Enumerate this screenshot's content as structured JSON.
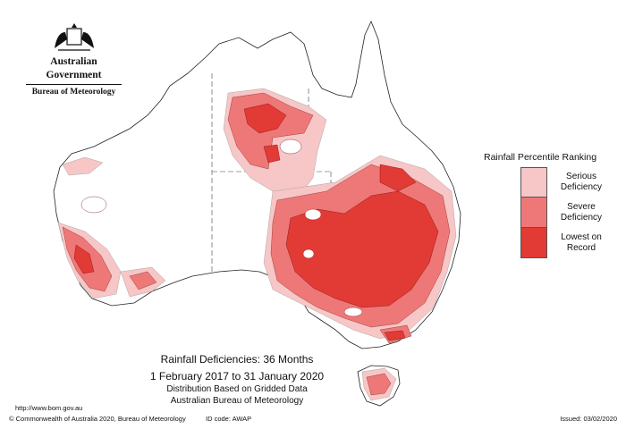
{
  "header": {
    "government": "Australian Government",
    "bureau": "Bureau of Meteorology"
  },
  "legend": {
    "title": "Rainfall Percentile Ranking",
    "items": [
      {
        "label_line1": "Serious",
        "label_line2": "Deficiency",
        "color": "#f7c6c6"
      },
      {
        "label_line1": "Severe",
        "label_line2": "Deficiency",
        "color": "#ee7878"
      },
      {
        "label_line1": "Lowest on",
        "label_line2": "Record",
        "color": "#e23a35"
      }
    ]
  },
  "caption": {
    "title": "Rainfall Deficiencies: 36 Months",
    "period": "1 February 2017 to 31 January 2020",
    "note": "Distribution Based on Gridded Data",
    "source": "Australian Bureau of Meteorology"
  },
  "url": "http://www.bom.gov.au",
  "footer": {
    "copyright": "© Commonwealth of Australia 2020, Bureau of Meteorology",
    "id_code": "ID code: AWAP",
    "issued": "Issued: 03/02/2020"
  },
  "colors": {
    "serious": "#f7c6c6",
    "severe": "#ee7878",
    "lowest": "#e23a35",
    "background": "#ffffff"
  }
}
